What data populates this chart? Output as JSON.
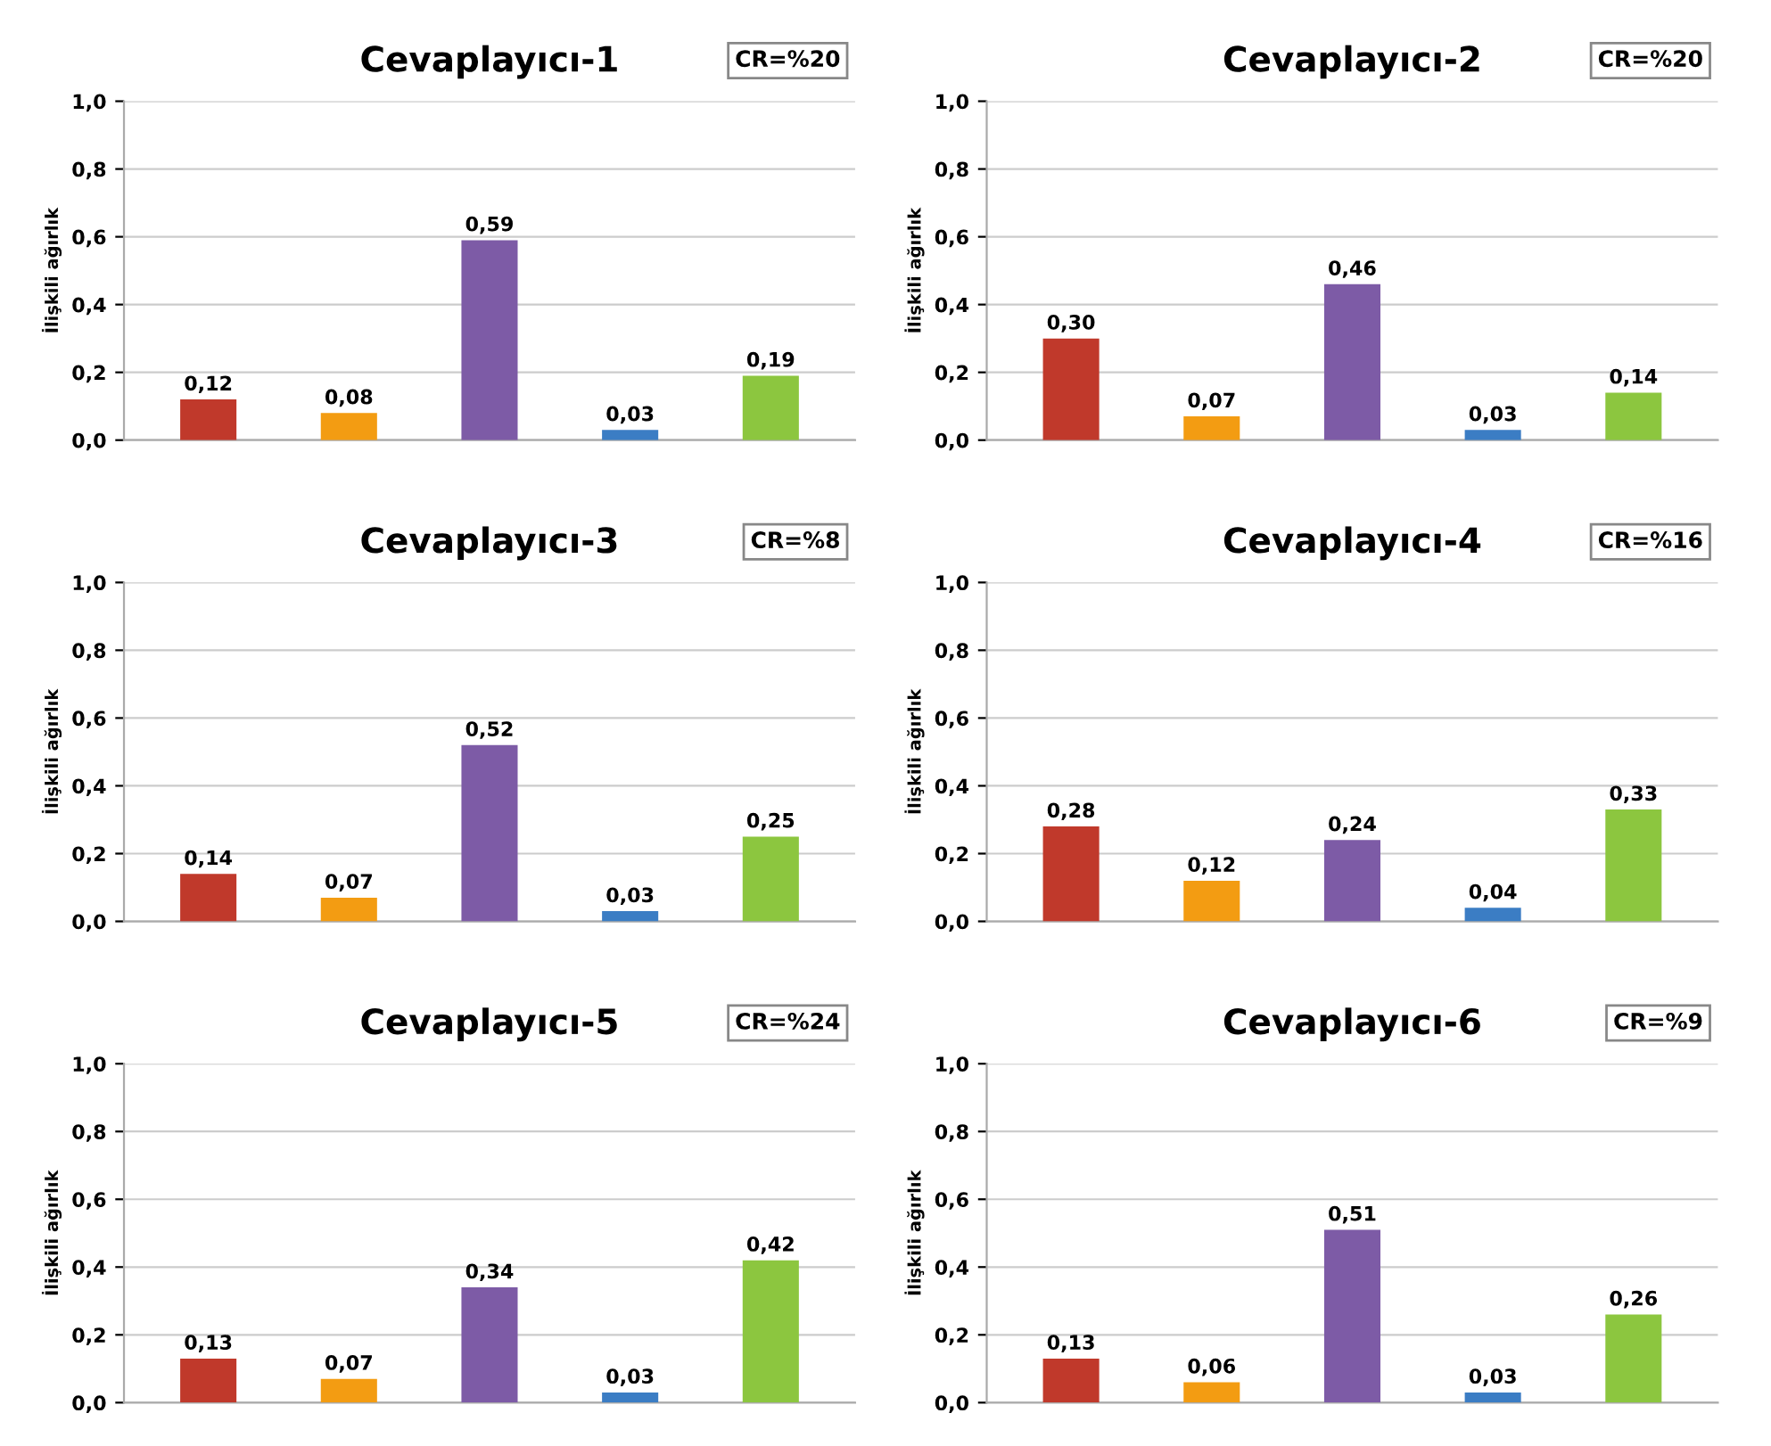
{
  "chart_data": [
    {
      "type": "bar",
      "title": "Cevaplayıcı-1",
      "ylabel": "İlişkili ağırlık",
      "annotations": [
        "CR=%20"
      ],
      "categories": [
        null,
        null,
        null,
        null,
        null
      ],
      "values": [
        0.12,
        0.08,
        0.59,
        0.03,
        0.19
      ],
      "value_labels": [
        "0,12",
        "0,08",
        "0,59",
        "0,03",
        "0,19"
      ],
      "colors": [
        "#c0392b",
        "#f39c12",
        "#7d5ba6",
        "#3b7dc4",
        "#8cc63f"
      ],
      "ylim": [
        0,
        1
      ],
      "yticks": [
        {
          "value": 0,
          "label": "0,0"
        },
        {
          "value": 0.2,
          "label": "0,2"
        },
        {
          "value": 0.4,
          "label": "0,4"
        },
        {
          "value": 0.6,
          "label": "0,6"
        },
        {
          "value": 0.8,
          "label": "0,8"
        },
        {
          "value": 1,
          "label": "1,0"
        }
      ],
      "grid": "y"
    },
    {
      "type": "bar",
      "title": "Cevaplayıcı-2",
      "ylabel": "İlişkili ağırlık",
      "annotations": [
        "CR=%20"
      ],
      "categories": [
        null,
        null,
        null,
        null,
        null
      ],
      "values": [
        0.3,
        0.07,
        0.46,
        0.03,
        0.14
      ],
      "value_labels": [
        "0,30",
        "0,07",
        "0,46",
        "0,03",
        "0,14"
      ],
      "colors": [
        "#c0392b",
        "#f39c12",
        "#7d5ba6",
        "#3b7dc4",
        "#8cc63f"
      ],
      "ylim": [
        0,
        1
      ],
      "yticks": [
        {
          "value": 0,
          "label": "0,0"
        },
        {
          "value": 0.2,
          "label": "0,2"
        },
        {
          "value": 0.4,
          "label": "0,4"
        },
        {
          "value": 0.6,
          "label": "0,6"
        },
        {
          "value": 0.8,
          "label": "0,8"
        },
        {
          "value": 1,
          "label": "1,0"
        }
      ],
      "grid": "y"
    },
    {
      "type": "bar",
      "title": "Cevaplayıcı-3",
      "ylabel": "İlişkili ağırlık",
      "annotations": [
        "CR=%8"
      ],
      "categories": [
        null,
        null,
        null,
        null,
        null
      ],
      "values": [
        0.14,
        0.07,
        0.52,
        0.03,
        0.25
      ],
      "value_labels": [
        "0,14",
        "0,07",
        "0,52",
        "0,03",
        "0,25"
      ],
      "colors": [
        "#c0392b",
        "#f39c12",
        "#7d5ba6",
        "#3b7dc4",
        "#8cc63f"
      ],
      "ylim": [
        0,
        1
      ],
      "yticks": [
        {
          "value": 0,
          "label": "0,0"
        },
        {
          "value": 0.2,
          "label": "0,2"
        },
        {
          "value": 0.4,
          "label": "0,4"
        },
        {
          "value": 0.6,
          "label": "0,6"
        },
        {
          "value": 0.8,
          "label": "0,8"
        },
        {
          "value": 1,
          "label": "1,0"
        }
      ],
      "grid": "y"
    },
    {
      "type": "bar",
      "title": "Cevaplayıcı-4",
      "ylabel": "İlişkili ağırlık",
      "annotations": [
        "CR=%16"
      ],
      "categories": [
        null,
        null,
        null,
        null,
        null
      ],
      "values": [
        0.28,
        0.12,
        0.24,
        0.04,
        0.33
      ],
      "value_labels": [
        "0,28",
        "0,12",
        "0,24",
        "0,04",
        "0,33"
      ],
      "colors": [
        "#c0392b",
        "#f39c12",
        "#7d5ba6",
        "#3b7dc4",
        "#8cc63f"
      ],
      "ylim": [
        0,
        1
      ],
      "yticks": [
        {
          "value": 0,
          "label": "0,0"
        },
        {
          "value": 0.2,
          "label": "0,2"
        },
        {
          "value": 0.4,
          "label": "0,4"
        },
        {
          "value": 0.6,
          "label": "0,6"
        },
        {
          "value": 0.8,
          "label": "0,8"
        },
        {
          "value": 1,
          "label": "1,0"
        }
      ],
      "grid": "y"
    },
    {
      "type": "bar",
      "title": "Cevaplayıcı-5",
      "ylabel": "İlişkili ağırlık",
      "annotations": [
        "CR=%24"
      ],
      "categories": [
        null,
        null,
        null,
        null,
        null
      ],
      "values": [
        0.13,
        0.07,
        0.34,
        0.03,
        0.42
      ],
      "value_labels": [
        "0,13",
        "0,07",
        "0,34",
        "0,03",
        "0,42"
      ],
      "colors": [
        "#c0392b",
        "#f39c12",
        "#7d5ba6",
        "#3b7dc4",
        "#8cc63f"
      ],
      "ylim": [
        0,
        1
      ],
      "yticks": [
        {
          "value": 0,
          "label": "0,0"
        },
        {
          "value": 0.2,
          "label": "0,2"
        },
        {
          "value": 0.4,
          "label": "0,4"
        },
        {
          "value": 0.6,
          "label": "0,6"
        },
        {
          "value": 0.8,
          "label": "0,8"
        },
        {
          "value": 1,
          "label": "1,0"
        }
      ],
      "grid": "y"
    },
    {
      "type": "bar",
      "title": "Cevaplayıcı-6",
      "ylabel": "İlişkili ağırlık",
      "annotations": [
        "CR=%9"
      ],
      "categories": [
        null,
        null,
        null,
        null,
        null
      ],
      "values": [
        0.13,
        0.06,
        0.51,
        0.03,
        0.26
      ],
      "value_labels": [
        "0,13",
        "0,06",
        "0,51",
        "0,03",
        "0,26"
      ],
      "colors": [
        "#c0392b",
        "#f39c12",
        "#7d5ba6",
        "#3b7dc4",
        "#8cc63f"
      ],
      "ylim": [
        0,
        1
      ],
      "yticks": [
        {
          "value": 0,
          "label": "0,0"
        },
        {
          "value": 0.2,
          "label": "0,2"
        },
        {
          "value": 0.4,
          "label": "0,4"
        },
        {
          "value": 0.6,
          "label": "0,6"
        },
        {
          "value": 0.8,
          "label": "0,8"
        },
        {
          "value": 1,
          "label": "1,0"
        }
      ],
      "grid": "y"
    }
  ]
}
